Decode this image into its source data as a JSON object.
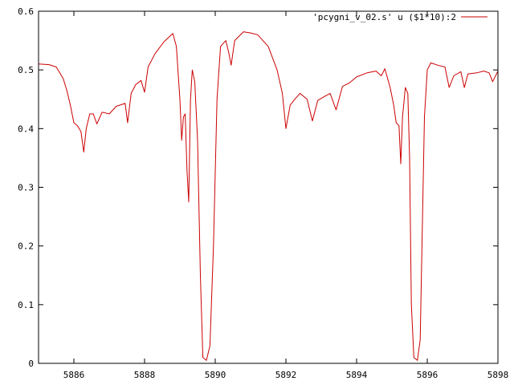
{
  "chart_data": {
    "type": "line",
    "title": "",
    "xlabel": "",
    "ylabel": "",
    "xlim": [
      5885,
      5898
    ],
    "ylim": [
      0,
      0.6
    ],
    "xticks": [
      5886,
      5888,
      5890,
      5892,
      5894,
      5896,
      5898
    ],
    "xtick_labels": [
      "5886",
      "5888",
      "5890",
      "5892",
      "5894",
      "5896",
      "5898"
    ],
    "yticks": [
      0,
      0.1,
      0.2,
      0.3,
      0.4,
      0.5,
      0.6
    ],
    "ytick_labels": [
      "0",
      "0.1",
      "0.2",
      "0.3",
      "0.4",
      "0.5",
      "0.6"
    ],
    "grid": false,
    "legend_position": "top-right",
    "series": [
      {
        "name": "'pcygni_v_02.s' u ($1*10):2",
        "color": "#cc0000",
        "points": [
          [
            5885.0,
            0.51
          ],
          [
            5885.3,
            0.509
          ],
          [
            5885.5,
            0.505
          ],
          [
            5885.7,
            0.485
          ],
          [
            5885.8,
            0.465
          ],
          [
            5885.9,
            0.44
          ],
          [
            5886.0,
            0.41
          ],
          [
            5886.1,
            0.405
          ],
          [
            5886.2,
            0.395
          ],
          [
            5886.28,
            0.36
          ],
          [
            5886.35,
            0.4
          ],
          [
            5886.45,
            0.425
          ],
          [
            5886.55,
            0.425
          ],
          [
            5886.65,
            0.408
          ],
          [
            5886.8,
            0.428
          ],
          [
            5887.0,
            0.425
          ],
          [
            5887.2,
            0.438
          ],
          [
            5887.45,
            0.443
          ],
          [
            5887.52,
            0.41
          ],
          [
            5887.62,
            0.46
          ],
          [
            5887.75,
            0.475
          ],
          [
            5887.9,
            0.482
          ],
          [
            5888.0,
            0.462
          ],
          [
            5888.1,
            0.505
          ],
          [
            5888.3,
            0.528
          ],
          [
            5888.55,
            0.548
          ],
          [
            5888.8,
            0.562
          ],
          [
            5888.9,
            0.54
          ],
          [
            5889.0,
            0.45
          ],
          [
            5889.05,
            0.38
          ],
          [
            5889.1,
            0.42
          ],
          [
            5889.15,
            0.425
          ],
          [
            5889.2,
            0.33
          ],
          [
            5889.25,
            0.275
          ],
          [
            5889.3,
            0.45
          ],
          [
            5889.35,
            0.5
          ],
          [
            5889.42,
            0.48
          ],
          [
            5889.5,
            0.38
          ],
          [
            5889.58,
            0.15
          ],
          [
            5889.65,
            0.01
          ],
          [
            5889.75,
            0.005
          ],
          [
            5889.85,
            0.03
          ],
          [
            5889.95,
            0.2
          ],
          [
            5890.05,
            0.45
          ],
          [
            5890.15,
            0.54
          ],
          [
            5890.3,
            0.55
          ],
          [
            5890.38,
            0.53
          ],
          [
            5890.45,
            0.508
          ],
          [
            5890.55,
            0.55
          ],
          [
            5890.8,
            0.565
          ],
          [
            5891.0,
            0.563
          ],
          [
            5891.2,
            0.56
          ],
          [
            5891.5,
            0.54
          ],
          [
            5891.75,
            0.5
          ],
          [
            5891.9,
            0.46
          ],
          [
            5892.0,
            0.4
          ],
          [
            5892.12,
            0.44
          ],
          [
            5892.25,
            0.45
          ],
          [
            5892.4,
            0.46
          ],
          [
            5892.6,
            0.45
          ],
          [
            5892.75,
            0.413
          ],
          [
            5892.9,
            0.448
          ],
          [
            5893.1,
            0.455
          ],
          [
            5893.25,
            0.46
          ],
          [
            5893.42,
            0.432
          ],
          [
            5893.6,
            0.472
          ],
          [
            5893.8,
            0.478
          ],
          [
            5894.0,
            0.488
          ],
          [
            5894.3,
            0.495
          ],
          [
            5894.55,
            0.498
          ],
          [
            5894.7,
            0.49
          ],
          [
            5894.8,
            0.502
          ],
          [
            5894.95,
            0.47
          ],
          [
            5895.05,
            0.44
          ],
          [
            5895.12,
            0.41
          ],
          [
            5895.2,
            0.405
          ],
          [
            5895.25,
            0.34
          ],
          [
            5895.3,
            0.42
          ],
          [
            5895.38,
            0.47
          ],
          [
            5895.45,
            0.46
          ],
          [
            5895.5,
            0.35
          ],
          [
            5895.55,
            0.1
          ],
          [
            5895.62,
            0.01
          ],
          [
            5895.72,
            0.005
          ],
          [
            5895.8,
            0.04
          ],
          [
            5895.85,
            0.2
          ],
          [
            5895.92,
            0.42
          ],
          [
            5896.0,
            0.5
          ],
          [
            5896.1,
            0.512
          ],
          [
            5896.3,
            0.508
          ],
          [
            5896.5,
            0.505
          ],
          [
            5896.62,
            0.47
          ],
          [
            5896.75,
            0.49
          ],
          [
            5896.95,
            0.497
          ],
          [
            5897.05,
            0.47
          ],
          [
            5897.15,
            0.493
          ],
          [
            5897.4,
            0.495
          ],
          [
            5897.6,
            0.498
          ],
          [
            5897.75,
            0.495
          ],
          [
            5897.85,
            0.48
          ],
          [
            5898.0,
            0.498
          ]
        ]
      }
    ]
  }
}
